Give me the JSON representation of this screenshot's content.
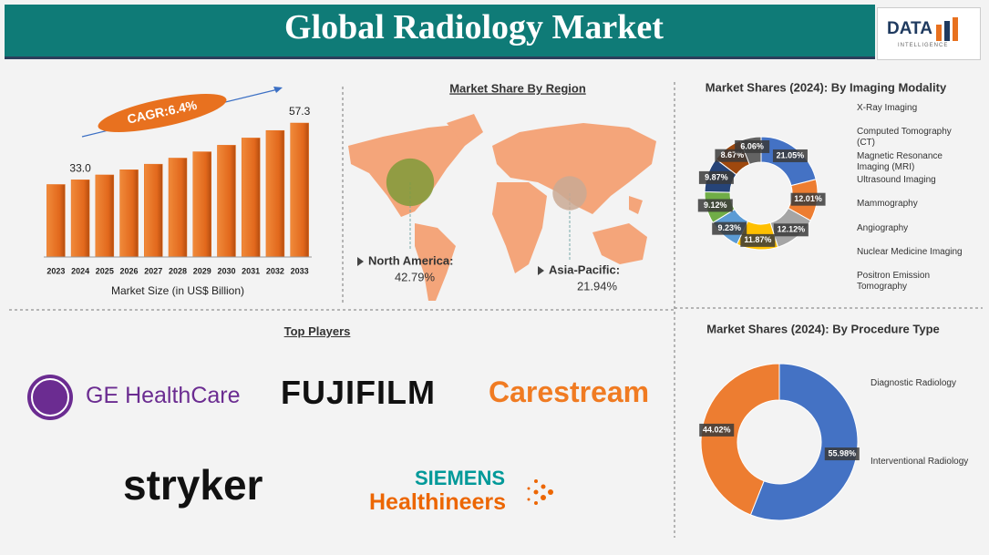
{
  "header": {
    "title": "Global Radiology Market",
    "logo": "DATA",
    "logo_sub": "INTELLIGENCE"
  },
  "chart_data": [
    {
      "type": "bar",
      "xlabel": "Market Size (in US$ Billion)",
      "annotation": "CAGR:6.4%",
      "categories": [
        "2023",
        "2024",
        "2025",
        "2026",
        "2027",
        "2028",
        "2029",
        "2030",
        "2031",
        "2032",
        "2033"
      ],
      "values": [
        31.0,
        33.0,
        35.1,
        37.3,
        39.7,
        42.3,
        45.0,
        47.8,
        50.9,
        54.1,
        57.3
      ],
      "value_labels": [
        null,
        "33.0",
        null,
        null,
        null,
        null,
        null,
        null,
        null,
        null,
        "57.3"
      ],
      "color": "#e8711f"
    },
    {
      "type": "map",
      "title": "Market Share By Region",
      "categories": [
        "North America:",
        "Asia-Pacific:"
      ],
      "values": [
        42.79,
        21.94
      ],
      "value_labels": [
        "42.79%",
        "21.94%"
      ],
      "colors": [
        "#7f9a3a",
        "#c9a994"
      ]
    },
    {
      "type": "donut",
      "title": "Market Shares (2024): By Imaging Modality",
      "categories": [
        "X-Ray Imaging",
        "Computed Tomography (CT)",
        "Magnetic Resonance Imaging (MRI)",
        "Ultrasound Imaging",
        "Mammography",
        "Angiography",
        "Nuclear Medicine Imaging",
        "Positron Emission Tomography",
        null
      ],
      "values": [
        21.05,
        12.01,
        12.12,
        11.87,
        9.23,
        9.12,
        9.87,
        8.67,
        6.06
      ],
      "value_labels": [
        "21.05%",
        "12.01%",
        "12.12%",
        "11.87%",
        "9.23%",
        "9.12%",
        "9.87%",
        "8.67%",
        "6.06%"
      ],
      "colors": [
        "#4472c4",
        "#ed7d31",
        "#a5a5a5",
        "#ffc000",
        "#5b9bd5",
        "#70ad47",
        "#264478",
        "#9e480e",
        "#636363"
      ]
    },
    {
      "type": "donut",
      "title": "Market Shares (2024): By Procedure Type",
      "categories": [
        "Diagnostic Radiology",
        "Interventional Radiology"
      ],
      "values": [
        55.98,
        44.02
      ],
      "value_labels": [
        "55.98%",
        "44.02%"
      ],
      "colors": [
        "#4472c4",
        "#ed7d31"
      ]
    }
  ],
  "top_players": {
    "title": "Top Players",
    "names": [
      "GE HealthCare",
      "FUJIFILM",
      "Carestream",
      "stryker",
      "SIEMENS",
      "Healthineers"
    ]
  }
}
